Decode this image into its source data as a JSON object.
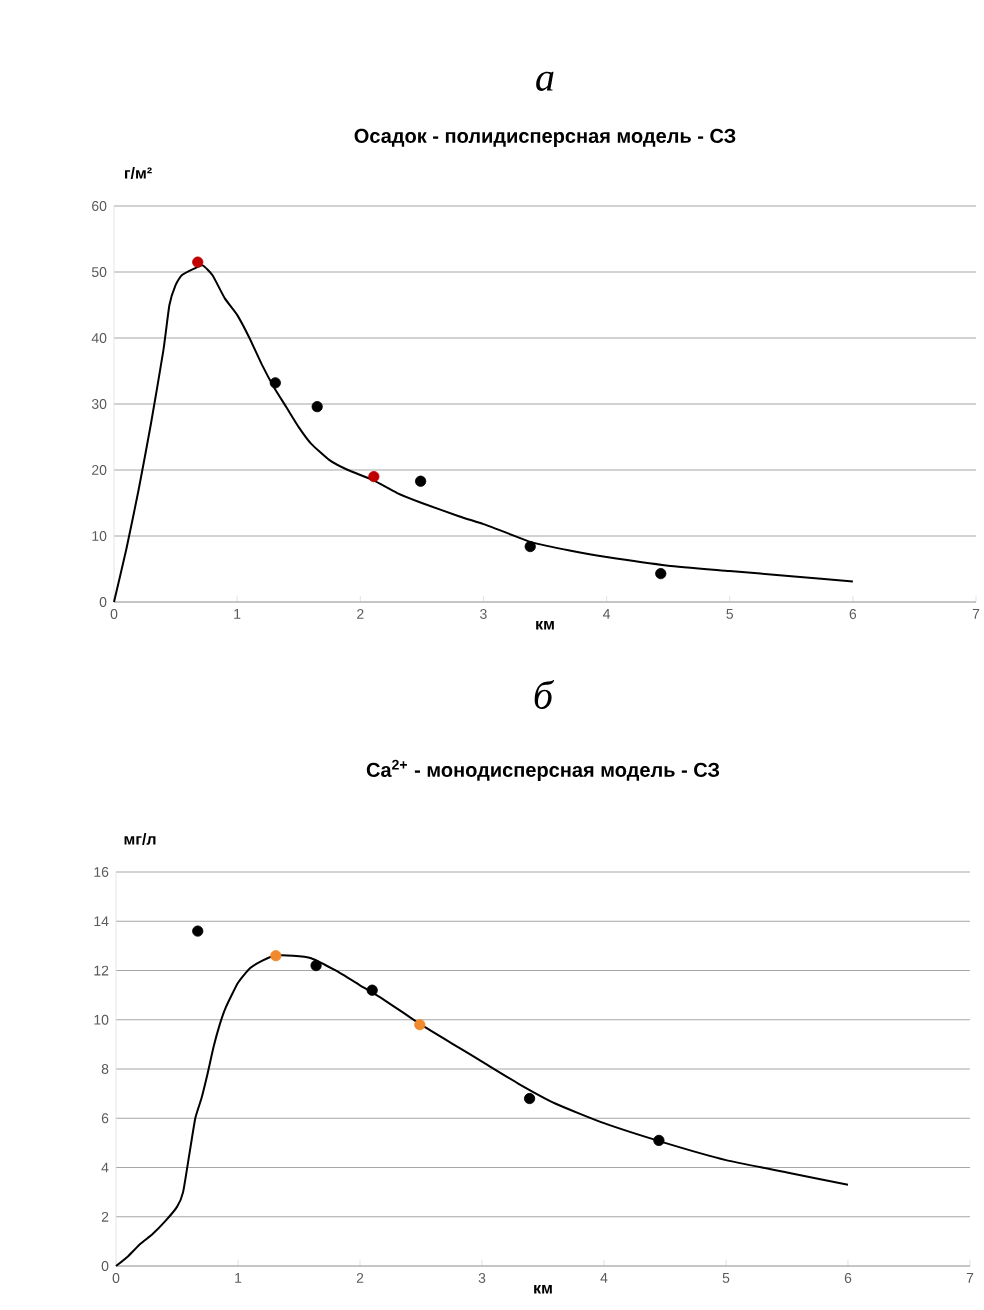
{
  "chart_data": [
    {
      "type": "scatter",
      "title": "Осадок - полидисперсная модель - СЗ",
      "xlabel": "км",
      "ylabel": "г/м²",
      "annotations": [
        "а"
      ],
      "xlim": [
        0,
        7
      ],
      "xticks": [
        0,
        1,
        2,
        3,
        4,
        5,
        6,
        7
      ],
      "ylim": [
        0,
        60
      ],
      "yticks": [
        0,
        10,
        20,
        30,
        40,
        50,
        60
      ],
      "grid": "y",
      "series": [
        {
          "type": "line",
          "marker": "none",
          "color": "#000000",
          "x": [
            0,
            0.1,
            0.2,
            0.3,
            0.4,
            0.45,
            0.5,
            0.55,
            0.65,
            0.72,
            0.8,
            0.9,
            1.0,
            1.1,
            1.2,
            1.3,
            1.4,
            1.5,
            1.6,
            1.75,
            1.9,
            2.1,
            2.3,
            2.5,
            2.8,
            3.0,
            3.2,
            3.4,
            3.7,
            4.0,
            4.5,
            5.0,
            5.5,
            6.0
          ],
          "values": [
            0,
            8,
            17,
            27,
            38,
            45,
            48,
            49.5,
            50.5,
            51,
            49.5,
            46,
            43.5,
            40,
            36,
            32.5,
            29.5,
            26.5,
            24,
            21.5,
            20,
            18.5,
            16.5,
            15,
            13,
            11.8,
            10.4,
            9,
            7.8,
            6.8,
            5.5,
            4.7,
            3.9,
            3.1
          ]
        },
        {
          "marker": "circle",
          "color": "#c00000",
          "x": [
            0.68,
            2.11
          ],
          "values": [
            51.5,
            19.0
          ]
        },
        {
          "marker": "circle",
          "color": "#000000",
          "x": [
            1.31,
            1.65,
            2.49,
            3.38,
            4.44
          ],
          "values": [
            33.2,
            29.6,
            18.3,
            8.4,
            4.3
          ]
        }
      ]
    },
    {
      "type": "scatter",
      "title": "Ca$^{2+}$ - монодисперсная модель - СЗ",
      "xlabel": "км",
      "ylabel": "мг/л",
      "annotations": [
        "б"
      ],
      "xlim": [
        0,
        7
      ],
      "xticks": [
        0,
        1,
        2,
        3,
        4,
        5,
        6,
        7
      ],
      "ylim": [
        0,
        16
      ],
      "yticks": [
        0,
        2,
        4,
        6,
        8,
        10,
        12,
        14,
        16
      ],
      "grid": "y",
      "series": [
        {
          "type": "line",
          "marker": "none",
          "color": "#000000",
          "x": [
            0,
            0.1,
            0.2,
            0.3,
            0.4,
            0.5,
            0.55,
            0.6,
            0.65,
            0.7,
            0.75,
            0.8,
            0.85,
            0.9,
            1.0,
            1.1,
            1.2,
            1.3,
            1.45,
            1.6,
            1.8,
            2.0,
            2.2,
            2.5,
            2.8,
            3.0,
            3.3,
            3.6,
            4.0,
            4.5,
            5.0,
            5.5,
            6.0
          ],
          "values": [
            0,
            0.4,
            0.9,
            1.3,
            1.8,
            2.4,
            3,
            4.5,
            6,
            6.8,
            7.8,
            8.9,
            9.8,
            10.5,
            11.5,
            12.1,
            12.4,
            12.6,
            12.6,
            12.5,
            12,
            11.4,
            10.8,
            9.8,
            8.9,
            8.3,
            7.4,
            6.6,
            5.8,
            5.0,
            4.3,
            3.8,
            3.3
          ]
        },
        {
          "marker": "circle",
          "color": "#f08a2c",
          "x": [
            1.31,
            2.49
          ],
          "values": [
            12.6,
            9.8
          ]
        },
        {
          "marker": "circle",
          "color": "#000000",
          "x": [
            0.67,
            1.64,
            2.1,
            3.39,
            4.45
          ],
          "values": [
            13.6,
            12.2,
            11.2,
            6.8,
            5.1
          ]
        }
      ]
    }
  ]
}
